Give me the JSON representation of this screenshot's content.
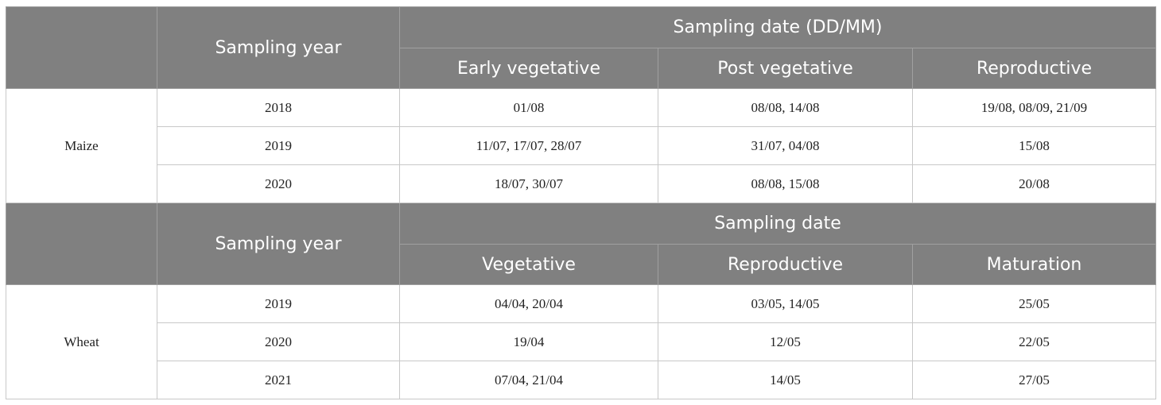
{
  "sections": [
    {
      "crop": "Maize",
      "header": {
        "year": "Sampling year",
        "group": "Sampling date (DD/MM)",
        "stages": [
          "Early vegetative",
          "Post vegetative",
          "Reproductive"
        ]
      },
      "rows": [
        {
          "year": "2018",
          "dates": [
            "01/08",
            "08/08, 14/08",
            "19/08, 08/09, 21/09"
          ]
        },
        {
          "year": "2019",
          "dates": [
            "11/07, 17/07, 28/07",
            "31/07, 04/08",
            "15/08"
          ]
        },
        {
          "year": "2020",
          "dates": [
            "18/07, 30/07",
            "08/08, 15/08",
            "20/08"
          ]
        }
      ]
    },
    {
      "crop": "Wheat",
      "header": {
        "year": "Sampling year",
        "group": "Sampling date",
        "stages": [
          "Vegetative",
          "Reproductive",
          "Maturation"
        ]
      },
      "rows": [
        {
          "year": "2019",
          "dates": [
            "04/04, 20/04",
            "03/05, 14/05",
            "25/05"
          ]
        },
        {
          "year": "2020",
          "dates": [
            "19/04",
            "12/05",
            "22/05"
          ]
        },
        {
          "year": "2021",
          "dates": [
            "07/04, 21/04",
            "14/05",
            "27/05"
          ]
        }
      ]
    }
  ]
}
